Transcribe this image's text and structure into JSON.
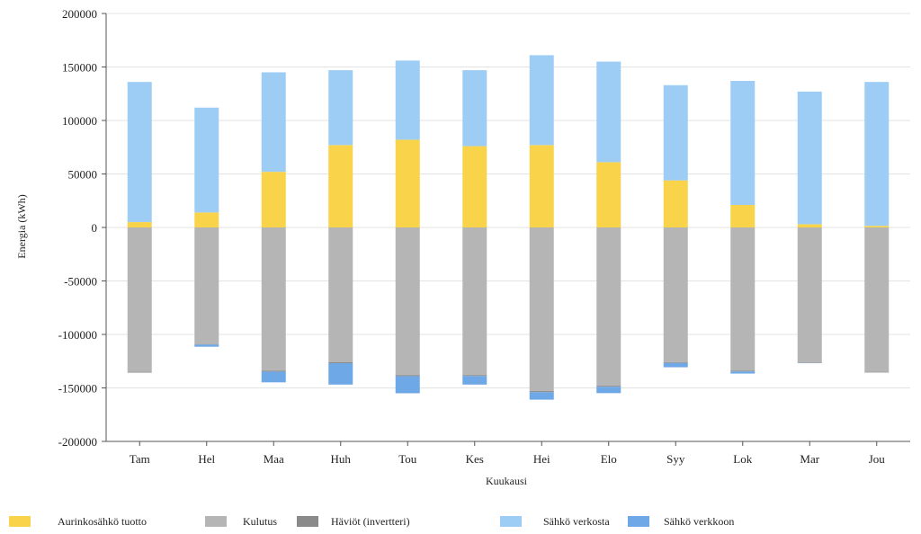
{
  "chart_data": {
    "type": "bar",
    "stacked": true,
    "title": "",
    "xlabel": "Kuukausi",
    "ylabel": "Energia (kWh)",
    "ylim": [
      -200000,
      200000
    ],
    "yticks": [
      200000,
      150000,
      100000,
      50000,
      0,
      -50000,
      -100000,
      -150000,
      -200000
    ],
    "grid": true,
    "legend_position": "bottom",
    "categories": [
      "Tam",
      "Hel",
      "Maa",
      "Huh",
      "Tou",
      "Kes",
      "Hei",
      "Elo",
      "Syy",
      "Lok",
      "Mar",
      "Jou"
    ],
    "series": [
      {
        "name": "Aurinkosähkö tuotto",
        "color": "#F9D44A",
        "values": [
          5000,
          14000,
          52000,
          77000,
          82000,
          76000,
          77000,
          61000,
          44000,
          21000,
          3000,
          1500
        ]
      },
      {
        "name": "Sähkö verkosta",
        "color": "#9DCDF5",
        "values": [
          131000,
          98000,
          93000,
          70000,
          74000,
          71000,
          84000,
          94000,
          89000,
          116000,
          124000,
          134500
        ]
      },
      {
        "name": "Kulutus",
        "color": "#B5B5B5",
        "values": [
          -135000,
          -109000,
          -134000,
          -126000,
          -138000,
          -138000,
          -153000,
          -148000,
          -126000,
          -134000,
          -126000,
          -135000
        ]
      },
      {
        "name": "Häviöt (invertteri)",
        "color": "#8A8A8A",
        "values": [
          -700,
          -500,
          -800,
          -900,
          -1000,
          -900,
          -1000,
          -900,
          -700,
          -600,
          -500,
          -600
        ]
      },
      {
        "name": "Sähkö verkkoon",
        "color": "#6FA8E6",
        "values": [
          0,
          -2000,
          -10000,
          -20000,
          -16000,
          -8000,
          -7000,
          -6000,
          -4000,
          -2000,
          -200,
          0
        ]
      }
    ],
    "legend_order": [
      "Aurinkosähkö tuotto",
      "Kulutus",
      "Häviöt (invertteri)",
      "Sähkö verkosta",
      "Sähkö verkkoon"
    ]
  }
}
